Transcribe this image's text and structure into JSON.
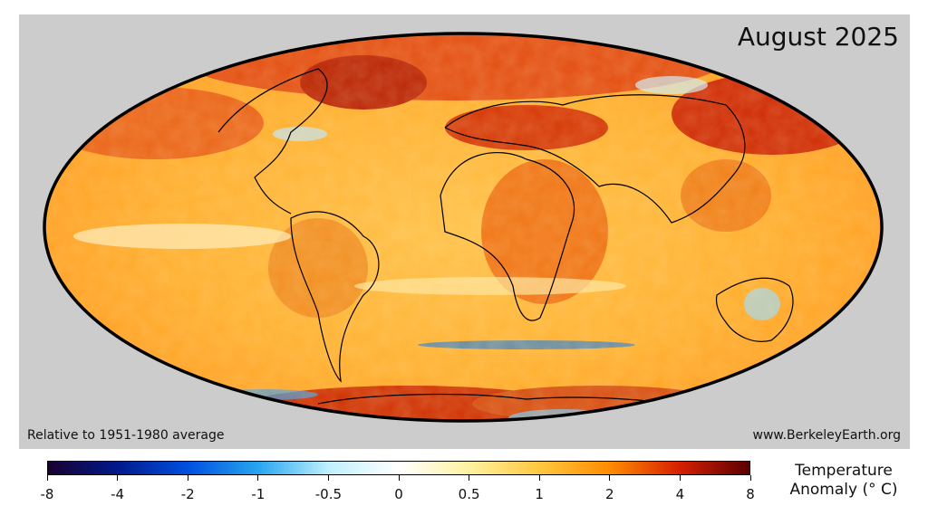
{
  "map": {
    "title": "August 2025",
    "baseline_note": "Relative to 1951-1980 average",
    "source_url": "www.BerkeleyEarth.org",
    "projection": "Mollweide",
    "background_color": "#cccccc",
    "outline_color": "#000000"
  },
  "colorbar": {
    "title_line1": "Temperature",
    "title_line2": "Anomaly (° C)",
    "ticks": [
      "-8",
      "-4",
      "-2",
      "-1",
      "-0.5",
      "0",
      "0.5",
      "1",
      "2",
      "4",
      "8"
    ],
    "colors": [
      "#1a0030",
      "#001a8c",
      "#0050e0",
      "#28a6f0",
      "#bff0ff",
      "#ffffff",
      "#fff2a0",
      "#ffc840",
      "#ff8c00",
      "#d62000",
      "#5a0000"
    ]
  }
}
